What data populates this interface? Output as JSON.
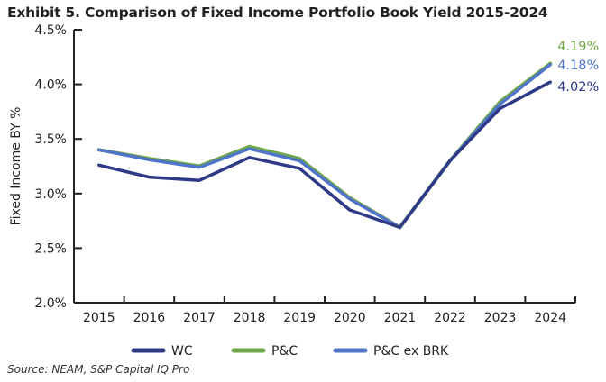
{
  "chart_data": {
    "type": "line",
    "title": "Exhibit 5. Comparison of Fixed Income Portfolio Book Yield 2015-2024",
    "xlabel": "",
    "ylabel": "Fixed Income BY %",
    "categories": [
      "2015",
      "2016",
      "2017",
      "2018",
      "2019",
      "2020",
      "2021",
      "2022",
      "2023",
      "2024"
    ],
    "ylim": [
      2.0,
      4.5
    ],
    "yticks": [
      "2.0%",
      "2.5%",
      "3.0%",
      "3.5%",
      "4.0%",
      "4.5%"
    ],
    "ytick_values": [
      2.0,
      2.5,
      3.0,
      3.5,
      4.0,
      4.5
    ],
    "grid": false,
    "legend_position": "bottom",
    "series": [
      {
        "name": "WC",
        "color": "#2e3a87",
        "values": [
          3.26,
          3.15,
          3.12,
          3.33,
          3.23,
          2.85,
          2.69,
          3.3,
          3.78,
          4.02
        ],
        "end_label": "4.02%"
      },
      {
        "name": "P&C",
        "color": "#6fa84a",
        "values": [
          3.4,
          3.32,
          3.25,
          3.43,
          3.32,
          2.96,
          2.69,
          3.3,
          3.84,
          4.19
        ],
        "end_label": "4.19%"
      },
      {
        "name": "P&C ex BRK",
        "color": "#4f74c9",
        "values": [
          3.4,
          3.31,
          3.24,
          3.41,
          3.3,
          2.95,
          2.69,
          3.3,
          3.82,
          4.18
        ],
        "end_label": "4.18%"
      }
    ]
  },
  "source": "Source: NEAM, S&P Capital IQ Pro"
}
